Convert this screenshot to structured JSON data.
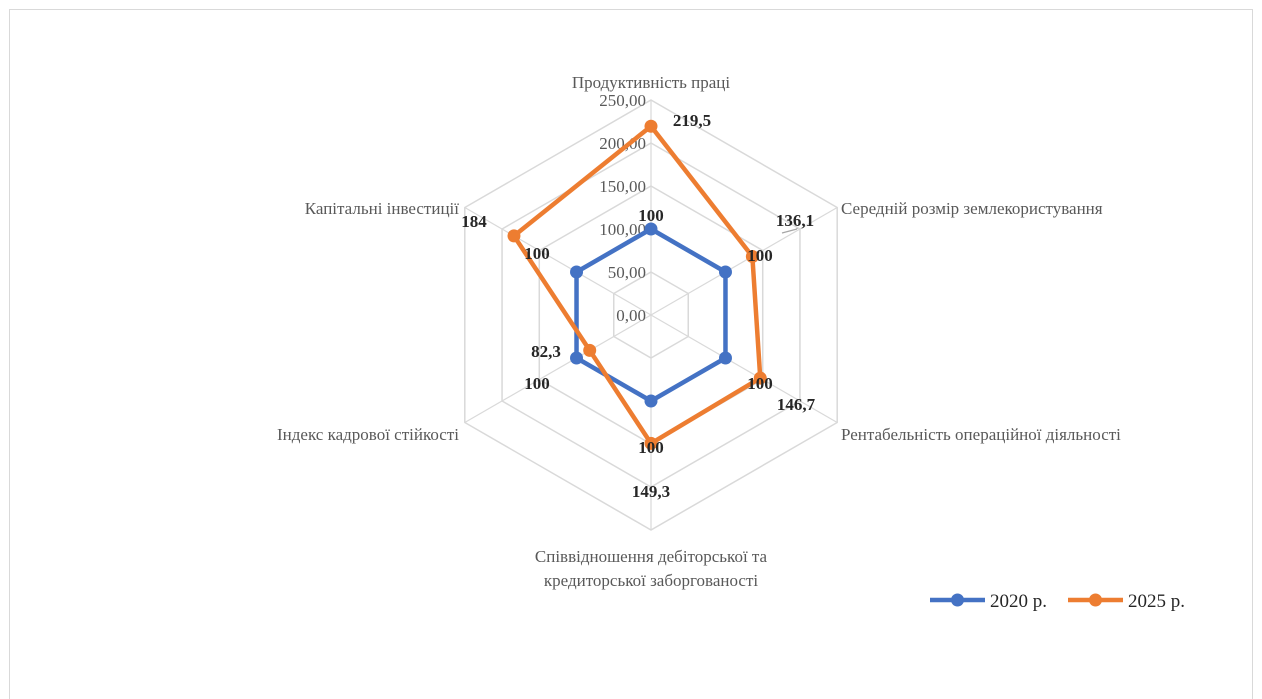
{
  "chart_data": {
    "type": "radar",
    "title": "",
    "categories": [
      "Продуктивність праці",
      "Середній розмір землекористування",
      "Рентабельність операційної діяльності",
      "Співвідношення дебіторської та кредиторської заборгованості",
      "Індекс кадрової стійкості",
      "Капітальні інвестиції"
    ],
    "category_lines": [
      [
        "Продуктивність праці"
      ],
      [
        "Середній розмір землекористування"
      ],
      [
        "Рентабельність операційної діяльності"
      ],
      [
        "Співвідношення дебіторської та",
        "кредиторської заборгованості"
      ],
      [
        "Індекс кадрової стійкості"
      ],
      [
        "Капітальні інвестиції"
      ]
    ],
    "rlim": [
      0,
      250
    ],
    "ticks": [
      0,
      50,
      100,
      150,
      200,
      250
    ],
    "tick_labels": [
      "0,00",
      "50,00",
      "100,00",
      "150,00",
      "200,00",
      "250,00"
    ],
    "grid": true,
    "legend_position": "bottom-right",
    "series": [
      {
        "name": "2020 р.",
        "color": "#4472c4",
        "values": [
          100,
          100,
          100,
          100,
          100,
          100
        ],
        "labels": [
          "100",
          "100",
          "100",
          "100",
          "100",
          "100"
        ]
      },
      {
        "name": "2025 р.",
        "color": "#ed7d31",
        "values": [
          219.5,
          136.1,
          146.7,
          149.3,
          82.3,
          184
        ],
        "labels": [
          "219,5",
          "136,1",
          "146,7",
          "149,3",
          "82,3",
          "184"
        ]
      }
    ]
  }
}
